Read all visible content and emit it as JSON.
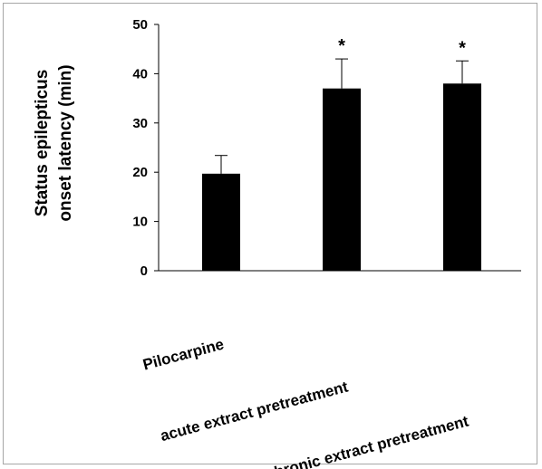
{
  "chart_data": {
    "type": "bar",
    "categories": [
      "Pilocarpine",
      "acute extract pretreatment",
      "chronic extract pretreatment"
    ],
    "values": [
      19.7,
      37.0,
      38.0
    ],
    "error_upper": [
      23.4,
      43.0,
      42.6
    ],
    "significance": [
      "",
      "*",
      "*"
    ],
    "ylabel_line1": "Status epilepticus",
    "ylabel_line2": "onset latency (min)",
    "xlabel": "",
    "title": "",
    "ylim": [
      0,
      50
    ],
    "yticks": [
      "0",
      "10",
      "20",
      "30",
      "40",
      "50"
    ],
    "grid": false,
    "legend": "none",
    "bar_color": "#000000"
  }
}
